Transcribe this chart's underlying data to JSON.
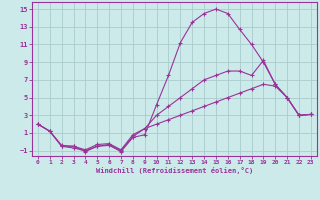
{
  "xlabel": "Windchill (Refroidissement éolien,°C)",
  "background_color": "#cceaea",
  "grid_color": "#aacccc",
  "line_color": "#993399",
  "xlim": [
    -0.5,
    23.5
  ],
  "ylim": [
    -1.6,
    15.8
  ],
  "xticks": [
    0,
    1,
    2,
    3,
    4,
    5,
    6,
    7,
    8,
    9,
    10,
    11,
    12,
    13,
    14,
    15,
    16,
    17,
    18,
    19,
    20,
    21,
    22,
    23
  ],
  "yticks": [
    -1,
    1,
    3,
    5,
    7,
    9,
    11,
    13,
    15
  ],
  "series1_x": [
    0,
    1,
    2,
    3,
    4,
    5,
    6,
    7,
    8,
    9,
    10,
    11,
    12,
    13,
    14,
    15,
    16,
    17,
    18,
    19,
    20,
    21,
    22,
    23
  ],
  "series1_y": [
    2.0,
    1.2,
    -0.5,
    -0.5,
    -1.1,
    -0.5,
    -0.4,
    -1.1,
    0.5,
    0.8,
    4.2,
    7.5,
    11.2,
    13.5,
    14.5,
    15.0,
    14.5,
    12.7,
    11.0,
    9.0,
    6.5,
    5.0,
    3.0,
    3.1
  ],
  "series2_x": [
    0,
    1,
    2,
    3,
    4,
    5,
    6,
    7,
    8,
    9,
    10,
    11,
    12,
    13,
    14,
    15,
    16,
    17,
    18,
    19,
    20,
    21,
    22,
    23
  ],
  "series2_y": [
    2.0,
    1.2,
    -0.5,
    -0.7,
    -1.0,
    -0.5,
    -0.3,
    -1.0,
    0.6,
    1.5,
    3.0,
    4.0,
    5.0,
    6.0,
    7.0,
    7.5,
    8.0,
    8.0,
    7.5,
    9.2,
    6.5,
    5.0,
    3.0,
    3.1
  ],
  "series3_x": [
    0,
    1,
    2,
    3,
    4,
    5,
    6,
    7,
    8,
    9,
    10,
    11,
    12,
    13,
    14,
    15,
    16,
    17,
    18,
    19,
    20,
    21,
    22,
    23
  ],
  "series3_y": [
    2.0,
    1.2,
    -0.4,
    -0.5,
    -0.9,
    -0.3,
    -0.2,
    -0.9,
    0.8,
    1.5,
    2.0,
    2.5,
    3.0,
    3.5,
    4.0,
    4.5,
    5.0,
    5.5,
    6.0,
    6.5,
    6.3,
    5.0,
    3.0,
    3.1
  ],
  "tick_fontsize": 4.5,
  "xlabel_fontsize": 5.0,
  "marker_size": 2.5,
  "line_width": 0.8
}
